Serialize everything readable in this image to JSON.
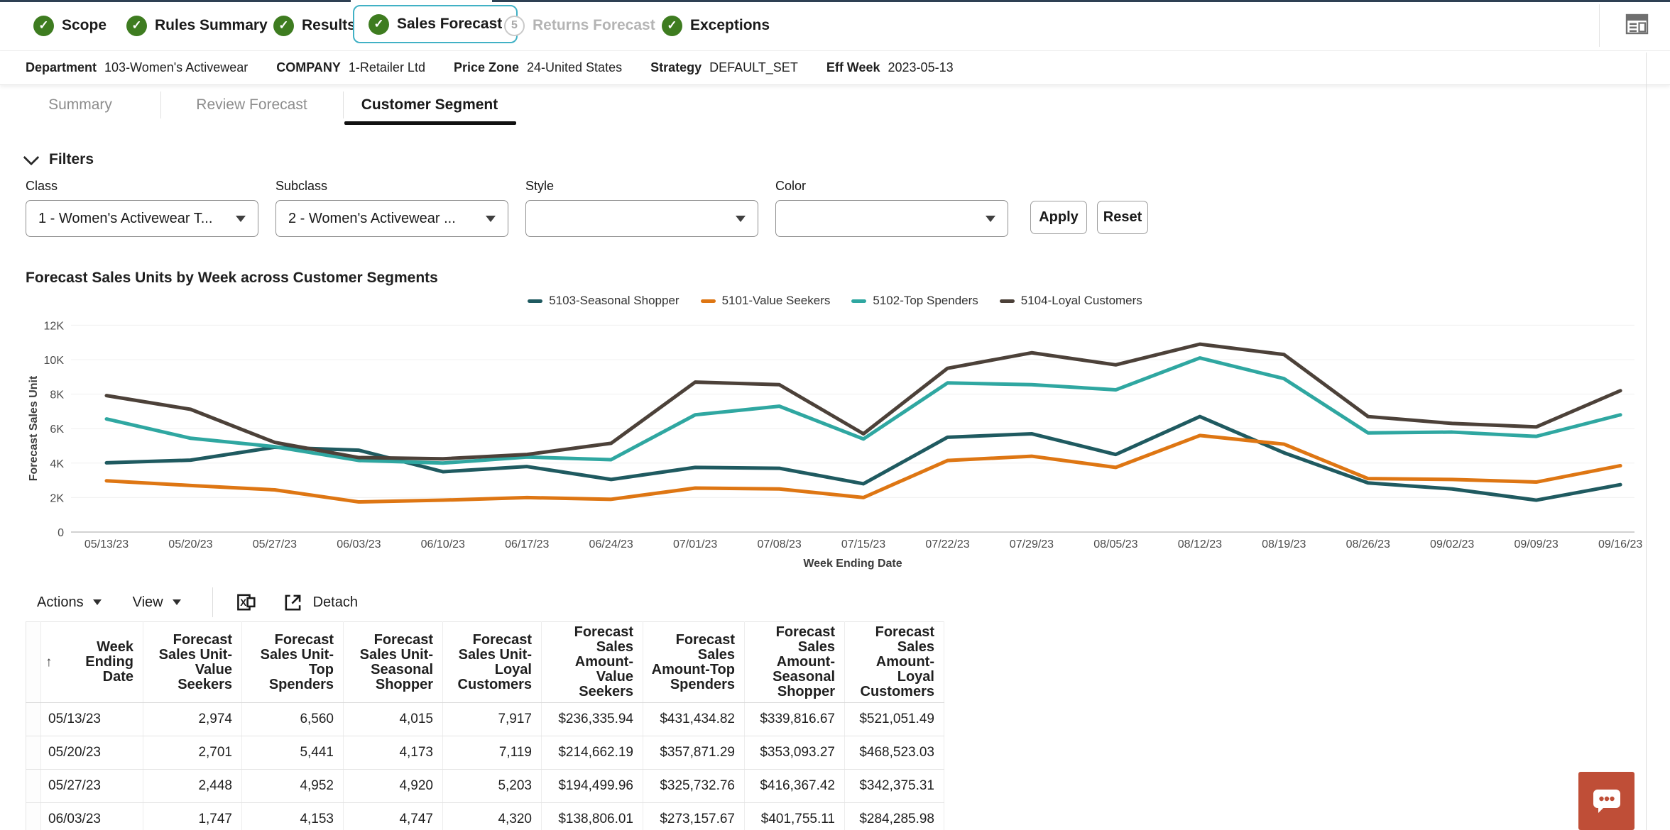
{
  "icons": {
    "check_glyph": "✓",
    "sort_asc_glyph": "↑"
  },
  "colors": {
    "accent_teal": "#41b1c5",
    "step_green": "#3e7c20",
    "active_tab_underline": "#111111",
    "chat_button": "#bf4e37"
  },
  "train": {
    "steps": [
      {
        "label": "Scope",
        "state": "done"
      },
      {
        "label": "Rules Summary",
        "state": "done"
      },
      {
        "label": "Results",
        "state": "done"
      },
      {
        "label": "Sales Forecast",
        "state": "active"
      },
      {
        "label": "Returns Forecast",
        "state": "disabled",
        "number": "5"
      },
      {
        "label": "Exceptions",
        "state": "done"
      }
    ]
  },
  "context": {
    "items": [
      {
        "label": "Department",
        "value": "103-Women's Activewear"
      },
      {
        "label": "COMPANY",
        "value": "1-Retailer Ltd"
      },
      {
        "label": "Price Zone",
        "value": "24-United States"
      },
      {
        "label": "Strategy",
        "value": "DEFAULT_SET"
      },
      {
        "label": "Eff Week",
        "value": "2023-05-13"
      }
    ]
  },
  "subtabs": [
    {
      "label": "Summary",
      "active": false
    },
    {
      "label": "Review Forecast",
      "active": false
    },
    {
      "label": "Customer Segment",
      "active": true
    }
  ],
  "filters": {
    "title": "Filters",
    "apply_label": "Apply",
    "reset_label": "Reset",
    "fields": [
      {
        "label": "Class",
        "value": "1 - Women's Activewear T..."
      },
      {
        "label": "Subclass",
        "value": "2 - Women's Activewear ..."
      },
      {
        "label": "Style",
        "value": ""
      },
      {
        "label": "Color",
        "value": ""
      }
    ]
  },
  "chart_data": {
    "type": "line",
    "title": "Forecast Sales Units by Week across Customer Segments",
    "xlabel": "Week Ending Date",
    "ylabel": "Forecast Sales Unit",
    "ylim": [
      0,
      12000
    ],
    "ytick_labels": [
      "0",
      "2K",
      "4K",
      "6K",
      "8K",
      "10K",
      "12K"
    ],
    "grid": "horizontal",
    "legend_position": "top-center",
    "x": [
      "05/13/23",
      "05/20/23",
      "05/27/23",
      "06/03/23",
      "06/10/23",
      "06/17/23",
      "06/24/23",
      "07/01/23",
      "07/08/23",
      "07/15/23",
      "07/22/23",
      "07/29/23",
      "08/05/23",
      "08/12/23",
      "08/19/23",
      "08/26/23",
      "09/02/23",
      "09/09/23",
      "09/16/23"
    ],
    "series": [
      {
        "name": "5103-Seasonal Shopper",
        "color": "#1f5a60",
        "values": [
          4015,
          4173,
          4920,
          4747,
          3500,
          3800,
          3050,
          3750,
          3700,
          2800,
          5500,
          5700,
          4500,
          6700,
          4600,
          2850,
          2500,
          1850,
          2750
        ]
      },
      {
        "name": "5101-Value Seekers",
        "color": "#de7613",
        "values": [
          2974,
          2701,
          2448,
          1747,
          1850,
          2000,
          1900,
          2550,
          2500,
          2000,
          4150,
          4400,
          3750,
          5600,
          5100,
          3100,
          3050,
          2900,
          3850
        ]
      },
      {
        "name": "5102-Top Spenders",
        "color": "#2fa7a1",
        "values": [
          6560,
          5441,
          4952,
          4153,
          4000,
          4350,
          4200,
          6800,
          7300,
          5400,
          8650,
          8550,
          8250,
          10100,
          8900,
          5750,
          5800,
          5550,
          6800
        ]
      },
      {
        "name": "5104-Loyal Customers",
        "color": "#4c4139",
        "values": [
          7917,
          7119,
          5203,
          4320,
          4250,
          4500,
          5150,
          8700,
          8550,
          5700,
          9500,
          10400,
          9700,
          10900,
          10300,
          6700,
          6300,
          6100,
          8200
        ]
      }
    ]
  },
  "toolbar": {
    "actions_label": "Actions",
    "view_label": "View",
    "detach_label": "Detach"
  },
  "table": {
    "columns": [
      "",
      "Week Ending Date",
      "Forecast Sales Unit-Value Seekers",
      "Forecast Sales Unit-Top Spenders",
      "Forecast Sales Unit-Seasonal Shopper",
      "Forecast Sales Unit-Loyal Customers",
      "Forecast Sales Amount-Value Seekers",
      "Forecast Sales Amount-Top Spenders",
      "Forecast Sales Amount-Seasonal Shopper",
      "Forecast Sales Amount-Loyal Customers"
    ],
    "rows": [
      [
        "05/13/23",
        "2,974",
        "6,560",
        "4,015",
        "7,917",
        "$236,335.94",
        "$431,434.82",
        "$339,816.67",
        "$521,051.49"
      ],
      [
        "05/20/23",
        "2,701",
        "5,441",
        "4,173",
        "7,119",
        "$214,662.19",
        "$357,871.29",
        "$353,093.27",
        "$468,523.03"
      ],
      [
        "05/27/23",
        "2,448",
        "4,952",
        "4,920",
        "5,203",
        "$194,499.96",
        "$325,732.76",
        "$416,367.42",
        "$342,375.31"
      ],
      [
        "06/03/23",
        "1,747",
        "4,153",
        "4,747",
        "4,320",
        "$138,806.01",
        "$273,157.67",
        "$401,755.11",
        "$284,285.98"
      ]
    ]
  }
}
